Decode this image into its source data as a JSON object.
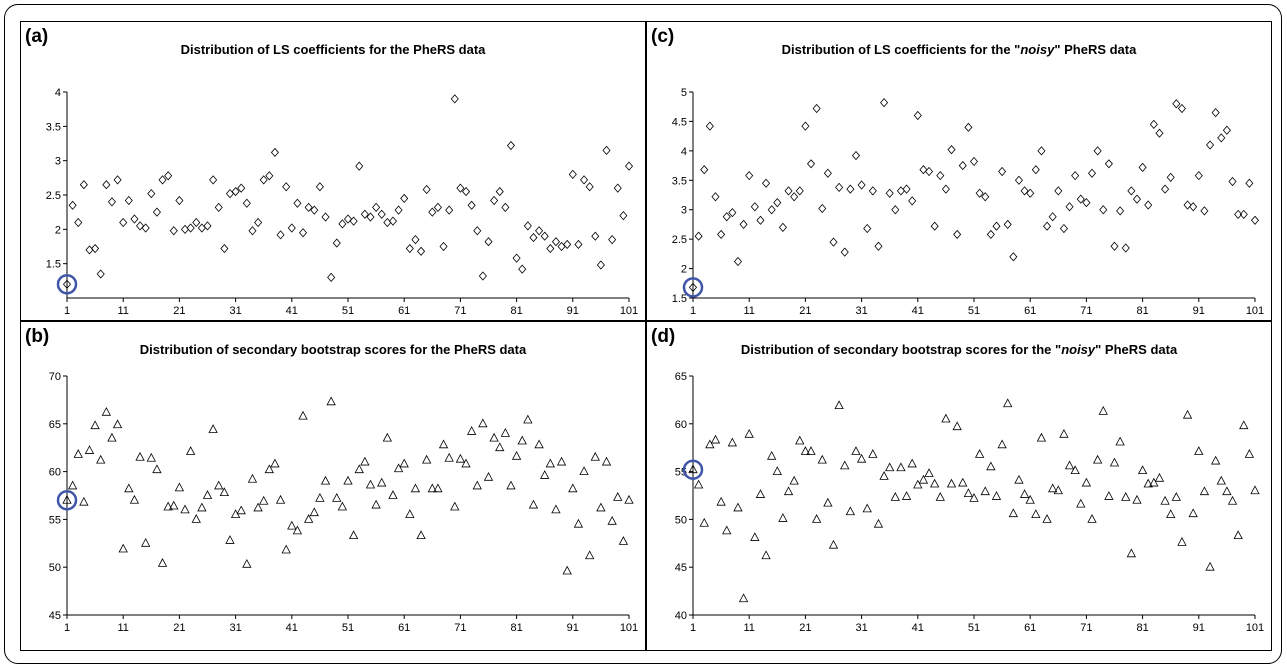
{
  "colors": {
    "highlight": "#3f56a8",
    "marker": "#000000"
  },
  "chart_data": [
    {
      "id": "a",
      "panel_label": "(a)",
      "title_before": "Distribution of LS coefficients for the PheRS data",
      "title_em": "",
      "title_after": "",
      "type": "scatter",
      "marker": "diamond",
      "xlim": [
        1,
        101
      ],
      "xticks": [
        "1",
        "11",
        "21",
        "31",
        "41",
        "51",
        "61",
        "71",
        "81",
        "91",
        "101"
      ],
      "ylim": [
        1,
        4
      ],
      "yticks": [
        "1.5",
        "2",
        "2.5",
        "3",
        "3.5",
        "4"
      ],
      "ytick_values": [
        1.5,
        2,
        2.5,
        3,
        3.5,
        4
      ],
      "highlight_index": 0,
      "y": [
        1.2,
        2.35,
        2.1,
        2.65,
        1.7,
        1.72,
        1.35,
        2.65,
        2.4,
        2.72,
        2.1,
        2.42,
        2.15,
        2.05,
        2.02,
        2.52,
        2.25,
        2.72,
        2.78,
        1.98,
        2.42,
        2.0,
        2.02,
        2.1,
        2.02,
        2.05,
        2.72,
        2.32,
        1.72,
        2.52,
        2.55,
        2.6,
        2.38,
        1.98,
        2.1,
        2.72,
        2.78,
        3.12,
        1.92,
        2.62,
        2.02,
        2.38,
        1.95,
        2.32,
        2.28,
        2.62,
        2.18,
        1.3,
        1.8,
        2.08,
        2.15,
        2.12,
        2.92,
        2.22,
        2.18,
        2.32,
        2.22,
        2.1,
        2.12,
        2.28,
        2.45,
        1.72,
        1.85,
        1.68,
        2.58,
        2.25,
        2.32,
        1.75,
        2.28,
        3.9,
        2.6,
        2.55,
        2.35,
        1.98,
        1.32,
        1.82,
        2.42,
        2.55,
        2.32,
        3.22,
        1.58,
        1.42,
        2.05,
        1.88,
        1.98,
        1.9,
        1.72,
        1.82,
        1.75,
        1.78,
        2.8,
        1.78,
        2.72,
        2.62,
        1.9,
        1.48,
        3.15,
        1.85,
        2.6,
        2.2,
        2.92
      ]
    },
    {
      "id": "c",
      "panel_label": "(c)",
      "title_before": "Distribution of LS coefficients for the \"",
      "title_em": "noisy",
      "title_after": "\" PheRS data",
      "type": "scatter",
      "marker": "diamond",
      "xlim": [
        1,
        101
      ],
      "xticks": [
        "1",
        "11",
        "21",
        "31",
        "41",
        "51",
        "61",
        "71",
        "81",
        "91",
        "101"
      ],
      "ylim": [
        1.5,
        5
      ],
      "yticks": [
        "1.5",
        "2",
        "2.5",
        "3",
        "3.5",
        "4",
        "4.5",
        "5"
      ],
      "ytick_values": [
        1.5,
        2,
        2.5,
        3,
        3.5,
        4,
        4.5,
        5
      ],
      "highlight_index": 0,
      "y": [
        1.68,
        2.55,
        3.68,
        4.42,
        3.22,
        2.58,
        2.88,
        2.95,
        2.12,
        2.75,
        3.58,
        3.05,
        2.82,
        3.45,
        3.0,
        3.12,
        2.7,
        3.32,
        3.22,
        3.32,
        4.42,
        3.78,
        4.72,
        3.02,
        3.62,
        2.45,
        3.38,
        2.28,
        3.35,
        3.92,
        3.42,
        2.68,
        3.32,
        2.38,
        4.82,
        3.28,
        3.0,
        3.32,
        3.35,
        3.15,
        4.6,
        3.68,
        3.65,
        2.72,
        3.58,
        3.35,
        4.02,
        2.58,
        3.75,
        4.4,
        3.82,
        3.28,
        3.22,
        2.58,
        2.72,
        3.65,
        2.75,
        2.2,
        3.5,
        3.32,
        3.28,
        3.68,
        4.0,
        2.72,
        2.88,
        3.32,
        2.68,
        3.05,
        3.58,
        3.18,
        3.12,
        3.62,
        4.0,
        3.0,
        3.78,
        2.38,
        2.98,
        2.35,
        3.32,
        3.18,
        3.72,
        3.08,
        4.45,
        4.3,
        3.35,
        3.55,
        4.8,
        4.72,
        3.08,
        3.05,
        3.58,
        2.98,
        4.1,
        4.65,
        4.22,
        4.35,
        3.48,
        2.92,
        2.92,
        3.45,
        2.82
      ]
    },
    {
      "id": "b",
      "panel_label": "(b)",
      "title_before": "Distribution of secondary bootstrap scores for the PheRS data",
      "title_em": "",
      "title_after": "",
      "type": "scatter",
      "marker": "triangle",
      "xlim": [
        1,
        101
      ],
      "xticks": [
        "1",
        "11",
        "21",
        "31",
        "41",
        "51",
        "61",
        "71",
        "81",
        "91",
        "101"
      ],
      "ylim": [
        45,
        70
      ],
      "yticks": [
        "45",
        "50",
        "55",
        "60",
        "65",
        "70"
      ],
      "ytick_values": [
        45,
        50,
        55,
        60,
        65,
        70
      ],
      "highlight_index": 0,
      "y": [
        57.0,
        58.5,
        61.8,
        56.8,
        62.2,
        64.8,
        61.2,
        66.2,
        63.5,
        64.9,
        51.9,
        58.2,
        57.0,
        61.5,
        52.5,
        61.4,
        60.2,
        50.4,
        56.3,
        56.4,
        58.3,
        56.0,
        62.1,
        55.0,
        56.2,
        57.5,
        64.4,
        58.5,
        57.8,
        52.8,
        55.5,
        55.9,
        50.3,
        59.2,
        56.2,
        56.9,
        60.2,
        60.8,
        57.0,
        51.8,
        54.3,
        53.8,
        65.8,
        55.0,
        55.7,
        57.2,
        59.0,
        67.3,
        57.2,
        56.3,
        59.0,
        53.3,
        60.2,
        61.0,
        58.6,
        56.5,
        58.8,
        63.5,
        57.5,
        60.3,
        60.8,
        55.5,
        58.2,
        53.3,
        61.2,
        58.2,
        58.2,
        62.8,
        61.4,
        56.3,
        61.3,
        60.8,
        64.2,
        58.5,
        65.0,
        59.4,
        63.5,
        62.5,
        64.0,
        58.5,
        61.6,
        63.2,
        65.4,
        56.5,
        62.8,
        59.6,
        60.8,
        56.0,
        61.0,
        49.6,
        58.2,
        54.5,
        60.0,
        51.2,
        61.5,
        56.2,
        61.0,
        54.8,
        57.3,
        52.7,
        57.0
      ]
    },
    {
      "id": "d",
      "panel_label": "(d)",
      "title_before": "Distribution of secondary bootstrap scores for the \"",
      "title_em": "noisy",
      "title_after": "\" PheRS data",
      "type": "scatter",
      "marker": "triangle",
      "xlim": [
        1,
        101
      ],
      "xticks": [
        "1",
        "11",
        "21",
        "31",
        "41",
        "51",
        "61",
        "71",
        "81",
        "91",
        "101"
      ],
      "ylim": [
        40,
        65
      ],
      "yticks": [
        "40",
        "45",
        "50",
        "55",
        "60",
        "65"
      ],
      "ytick_values": [
        40,
        45,
        50,
        55,
        60,
        65
      ],
      "highlight_index": 0,
      "y": [
        55.2,
        53.6,
        49.6,
        57.8,
        58.3,
        51.8,
        48.8,
        58.0,
        51.2,
        41.7,
        58.9,
        48.1,
        52.6,
        46.2,
        56.6,
        55.0,
        50.1,
        52.9,
        54.0,
        58.2,
        57.1,
        57.1,
        50.0,
        56.2,
        51.7,
        47.3,
        61.9,
        55.6,
        50.8,
        57.1,
        56.3,
        51.1,
        56.8,
        49.5,
        54.5,
        55.4,
        52.3,
        55.4,
        52.4,
        55.8,
        53.6,
        54.1,
        54.8,
        53.7,
        52.3,
        60.5,
        53.7,
        59.7,
        53.8,
        52.7,
        52.2,
        56.8,
        52.9,
        55.5,
        52.4,
        57.8,
        62.1,
        50.6,
        54.1,
        52.6,
        52.0,
        50.5,
        58.5,
        50.0,
        53.2,
        53.0,
        58.9,
        55.6,
        55.1,
        51.6,
        53.8,
        50.0,
        56.2,
        61.3,
        52.4,
        55.9,
        58.1,
        52.3,
        46.4,
        52.0,
        55.1,
        53.7,
        53.8,
        54.3,
        51.9,
        50.5,
        52.3,
        47.6,
        60.9,
        50.6,
        57.1,
        52.9,
        45.0,
        56.1,
        54.0,
        52.9,
        51.9,
        48.3,
        59.8,
        56.8,
        53.0
      ]
    }
  ]
}
